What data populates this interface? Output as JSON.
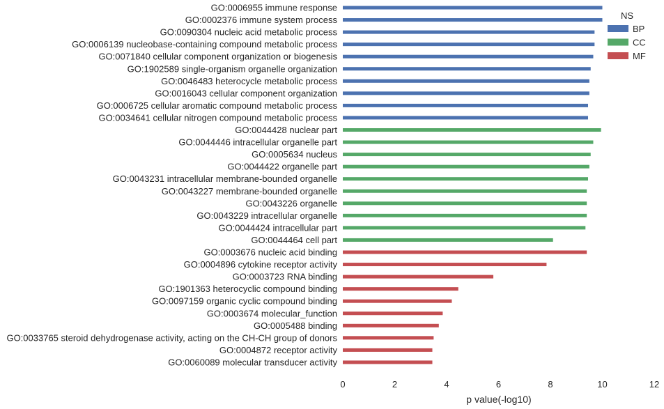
{
  "chart_data": {
    "type": "bar",
    "orientation": "horizontal",
    "xlabel": "p value(-log10)",
    "ylabel": "",
    "xlim": [
      0,
      12
    ],
    "x_ticks": [
      "0",
      "2",
      "4",
      "6",
      "8",
      "10",
      "12"
    ],
    "grid": false,
    "legend": {
      "title": "NS",
      "placement": "top-right",
      "entries": [
        {
          "name": "BP",
          "color": "#4c72b0"
        },
        {
          "name": "CC",
          "color": "#55a868"
        },
        {
          "name": "MF",
          "color": "#c44e52"
        }
      ]
    },
    "bars": [
      {
        "label": "GO:0006955 immune response",
        "value": 10.0,
        "ns": "BP"
      },
      {
        "label": "GO:0002376 immune system process",
        "value": 10.0,
        "ns": "BP"
      },
      {
        "label": "GO:0090304 nucleic acid metabolic process",
        "value": 9.7,
        "ns": "BP"
      },
      {
        "label": "GO:0006139 nucleobase-containing compound metabolic process",
        "value": 9.7,
        "ns": "BP"
      },
      {
        "label": "GO:0071840 cellular component organization or biogenesis",
        "value": 9.65,
        "ns": "BP"
      },
      {
        "label": "GO:1902589 single-organism organelle organization",
        "value": 9.55,
        "ns": "BP"
      },
      {
        "label": "GO:0046483 heterocycle metabolic process",
        "value": 9.5,
        "ns": "BP"
      },
      {
        "label": "GO:0016043 cellular component organization",
        "value": 9.5,
        "ns": "BP"
      },
      {
        "label": "GO:0006725 cellular aromatic compound metabolic process",
        "value": 9.45,
        "ns": "BP"
      },
      {
        "label": "GO:0034641 cellular nitrogen compound metabolic process",
        "value": 9.45,
        "ns": "BP"
      },
      {
        "label": "GO:0044428 nuclear part",
        "value": 9.95,
        "ns": "CC"
      },
      {
        "label": "GO:0044446 intracellular organelle part",
        "value": 9.65,
        "ns": "CC"
      },
      {
        "label": "GO:0005634 nucleus",
        "value": 9.55,
        "ns": "CC"
      },
      {
        "label": "GO:0044422 organelle part",
        "value": 9.5,
        "ns": "CC"
      },
      {
        "label": "GO:0043231 intracellular membrane-bounded organelle",
        "value": 9.45,
        "ns": "CC"
      },
      {
        "label": "GO:0043227 membrane-bounded organelle",
        "value": 9.4,
        "ns": "CC"
      },
      {
        "label": "GO:0043226 organelle",
        "value": 9.4,
        "ns": "CC"
      },
      {
        "label": "GO:0043229 intracellular organelle",
        "value": 9.4,
        "ns": "CC"
      },
      {
        "label": "GO:0044424 intracellular part",
        "value": 9.35,
        "ns": "CC"
      },
      {
        "label": "GO:0044464 cell part",
        "value": 8.1,
        "ns": "CC"
      },
      {
        "label": "GO:0003676 nucleic acid binding",
        "value": 9.4,
        "ns": "MF"
      },
      {
        "label": "GO:0004896 cytokine receptor activity",
        "value": 7.85,
        "ns": "MF"
      },
      {
        "label": "GO:0003723 RNA binding",
        "value": 5.8,
        "ns": "MF"
      },
      {
        "label": "GO:1901363 heterocyclic compound binding",
        "value": 4.45,
        "ns": "MF"
      },
      {
        "label": "GO:0097159 organic cyclic compound binding",
        "value": 4.2,
        "ns": "MF"
      },
      {
        "label": "GO:0003674 molecular_function",
        "value": 3.85,
        "ns": "MF"
      },
      {
        "label": "GO:0005488 binding",
        "value": 3.7,
        "ns": "MF"
      },
      {
        "label": "GO:0033765 steroid dehydrogenase activity, acting on the CH-CH group of donors",
        "value": 3.5,
        "ns": "MF"
      },
      {
        "label": "GO:0004872 receptor activity",
        "value": 3.45,
        "ns": "MF"
      },
      {
        "label": "GO:0060089 molecular transducer activity",
        "value": 3.45,
        "ns": "MF"
      }
    ]
  }
}
